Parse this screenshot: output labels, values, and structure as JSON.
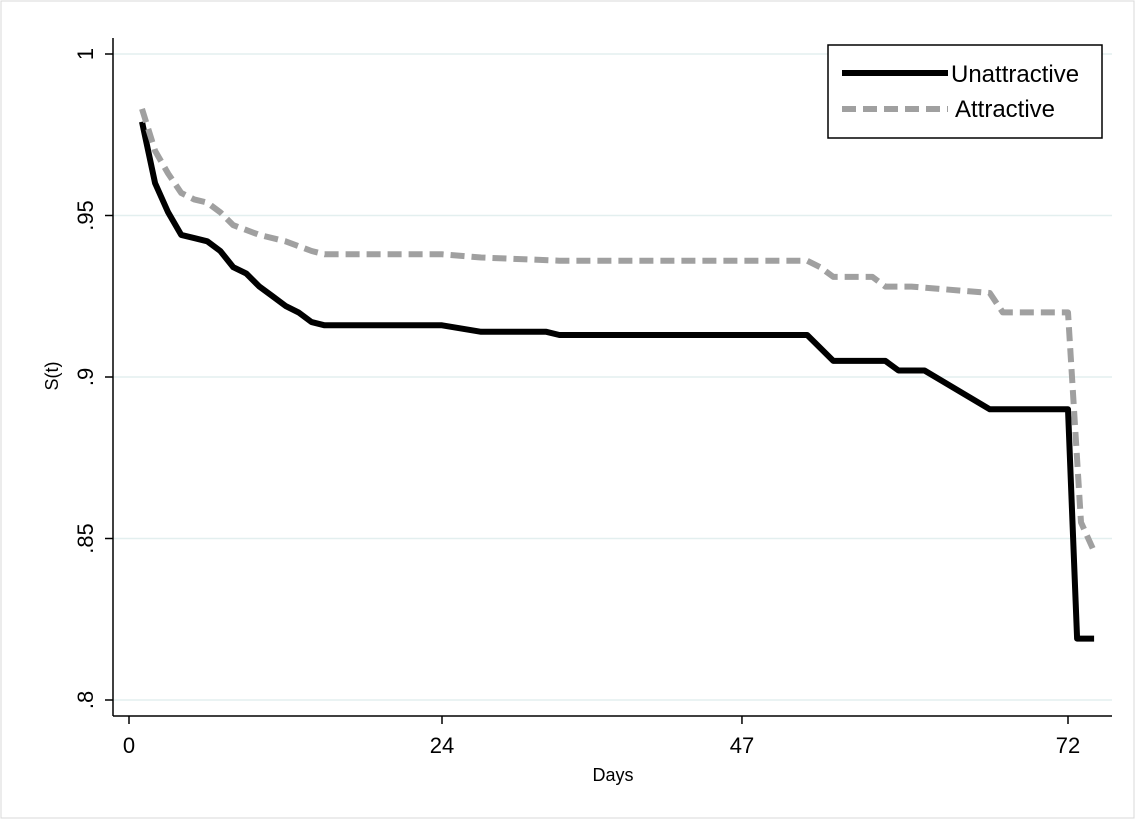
{
  "chart_data": {
    "type": "line",
    "xlabel": "Days",
    "ylabel": "S(t)",
    "xlim": [
      0,
      75
    ],
    "ylim": [
      0.8,
      1.0
    ],
    "x_ticks": [
      0,
      24,
      47,
      72
    ],
    "x_tick_labels": [
      "0",
      "24",
      "47",
      "72"
    ],
    "y_ticks": [
      0.8,
      0.85,
      0.9,
      0.95,
      1.0
    ],
    "y_tick_labels": [
      ".8",
      ".85",
      ".9",
      ".95",
      "1"
    ],
    "grid": "horizontal",
    "legend_position": "top-right",
    "series": [
      {
        "name": "Unattractive",
        "color": "#000000",
        "style": "solid",
        "points": [
          [
            1,
            0.979
          ],
          [
            2,
            0.96
          ],
          [
            3,
            0.951
          ],
          [
            4,
            0.944
          ],
          [
            5,
            0.943
          ],
          [
            6,
            0.942
          ],
          [
            7,
            0.939
          ],
          [
            8,
            0.934
          ],
          [
            9,
            0.932
          ],
          [
            10,
            0.928
          ],
          [
            11,
            0.925
          ],
          [
            12,
            0.922
          ],
          [
            13,
            0.92
          ],
          [
            14,
            0.917
          ],
          [
            15,
            0.916
          ],
          [
            18,
            0.916
          ],
          [
            24,
            0.916
          ],
          [
            27,
            0.914
          ],
          [
            32,
            0.914
          ],
          [
            33,
            0.913
          ],
          [
            52,
            0.913
          ],
          [
            54,
            0.905
          ],
          [
            58,
            0.905
          ],
          [
            59,
            0.902
          ],
          [
            61,
            0.902
          ],
          [
            66,
            0.89
          ],
          [
            72,
            0.89
          ],
          [
            72.7,
            0.819
          ],
          [
            74,
            0.819
          ]
        ]
      },
      {
        "name": "Attractive",
        "color": "#a0a0a0",
        "style": "dashed",
        "points": [
          [
            1,
            0.983
          ],
          [
            2,
            0.97
          ],
          [
            3,
            0.963
          ],
          [
            4,
            0.957
          ],
          [
            5,
            0.955
          ],
          [
            6,
            0.954
          ],
          [
            7,
            0.951
          ],
          [
            8,
            0.947
          ],
          [
            10,
            0.944
          ],
          [
            12,
            0.942
          ],
          [
            14,
            0.939
          ],
          [
            15,
            0.938
          ],
          [
            24,
            0.938
          ],
          [
            27,
            0.937
          ],
          [
            33,
            0.936
          ],
          [
            52,
            0.936
          ],
          [
            53,
            0.934
          ],
          [
            54,
            0.931
          ],
          [
            57,
            0.931
          ],
          [
            58,
            0.928
          ],
          [
            60,
            0.928
          ],
          [
            66,
            0.926
          ],
          [
            67,
            0.92
          ],
          [
            72,
            0.92
          ],
          [
            73,
            0.855
          ],
          [
            74,
            0.846
          ]
        ]
      }
    ]
  }
}
